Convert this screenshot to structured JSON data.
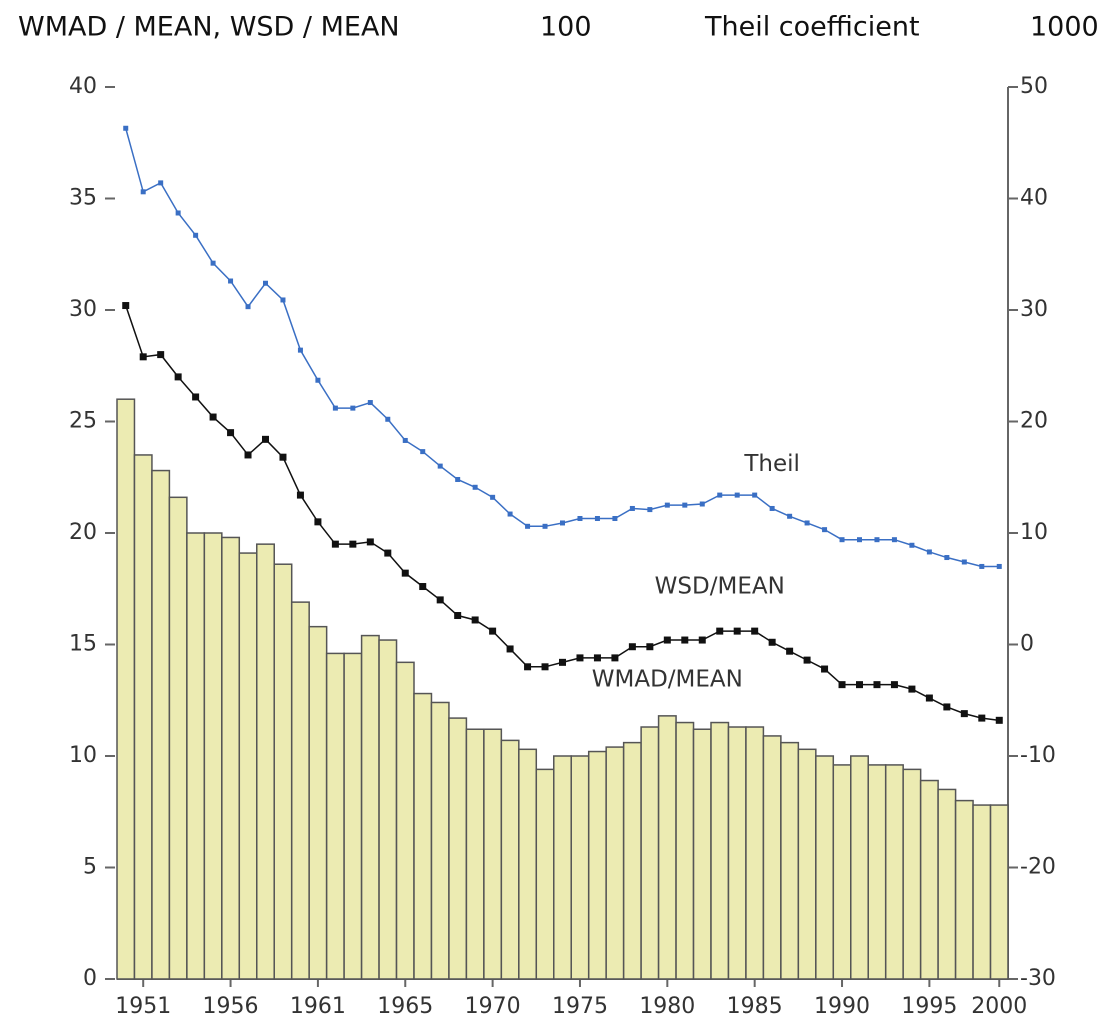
{
  "chart_data": {
    "type": "bar",
    "header": [
      "WMAD / MEAN,  WSD / MEAN",
      "100",
      "Theil coefficient",
      "1000"
    ],
    "categories": [
      null,
      "1951",
      null,
      null,
      null,
      null,
      "1956",
      null,
      null,
      null,
      null,
      "1961",
      null,
      null,
      null,
      null,
      "1965",
      null,
      null,
      null,
      null,
      "1970",
      null,
      null,
      null,
      null,
      "1975",
      null,
      null,
      null,
      null,
      "1980",
      null,
      null,
      null,
      null,
      "1985",
      null,
      null,
      null,
      null,
      "1990",
      null,
      null,
      null,
      null,
      "1995",
      null,
      null,
      null,
      "2000"
    ],
    "series": [
      {
        "name": "WMAD/MEAN",
        "type": "bar",
        "color": "#ecebb2",
        "axis": "y",
        "values": [
          26,
          23.5,
          22.8,
          21.6,
          20.0,
          20.0,
          19.8,
          19.1,
          19.5,
          18.6,
          16.9,
          15.8,
          14.6,
          14.6,
          15.4,
          15.2,
          14.2,
          12.8,
          12.4,
          11.7,
          11.2,
          11.2,
          10.7,
          10.3,
          9.4,
          10.0,
          10.0,
          10.2,
          10.4,
          10.6,
          11.3,
          11.8,
          11.5,
          11.2,
          11.5,
          11.3,
          11.3,
          10.9,
          10.6,
          10.3,
          10.0,
          9.6,
          10.0,
          9.6,
          9.6,
          9.4,
          8.9,
          8.5,
          8.0,
          7.8,
          7.8
        ]
      },
      {
        "name": "WSD/MEAN",
        "type": "line",
        "color": "#111111",
        "axis": "y",
        "values": [
          30.2,
          27.9,
          28.0,
          27.0,
          26.1,
          25.2,
          24.5,
          23.5,
          24.2,
          23.4,
          21.7,
          20.5,
          19.5,
          19.5,
          19.6,
          19.1,
          18.2,
          17.6,
          17.0,
          16.3,
          16.1,
          15.6,
          14.8,
          14.0,
          14.0,
          14.2,
          14.4,
          14.4,
          14.4,
          14.9,
          14.9,
          15.2,
          15.2,
          15.2,
          15.6,
          15.6,
          15.6,
          15.1,
          14.7,
          14.3,
          13.9,
          13.2,
          13.2,
          13.2,
          13.2,
          13.0,
          12.6,
          12.2,
          11.9,
          11.7,
          11.6
        ]
      },
      {
        "name": "Theil",
        "type": "line",
        "color": "#3a6fc4",
        "axis": "y2",
        "values": [
          46.3,
          40.6,
          41.4,
          38.7,
          36.7,
          34.2,
          32.6,
          30.3,
          32.4,
          30.9,
          26.4,
          23.7,
          21.2,
          21.2,
          21.7,
          20.2,
          18.3,
          17.3,
          16.0,
          14.8,
          14.1,
          13.2,
          11.7,
          10.6,
          10.6,
          10.9,
          11.3,
          11.3,
          11.3,
          12.2,
          12.1,
          12.5,
          12.5,
          12.6,
          13.4,
          13.4,
          13.4,
          12.2,
          11.5,
          10.9,
          10.3,
          9.4,
          9.4,
          9.4,
          9.4,
          8.9,
          8.3,
          7.8,
          7.4,
          7.0,
          7.0
        ]
      }
    ],
    "ylim": [
      0,
      40
    ],
    "yticks": [
      0,
      5,
      10,
      15,
      20,
      25,
      30,
      35,
      40
    ],
    "y2lim": [
      -30,
      50
    ],
    "y2ticks": [
      -30,
      -20,
      -10,
      0,
      10,
      20,
      30,
      40,
      50
    ]
  }
}
